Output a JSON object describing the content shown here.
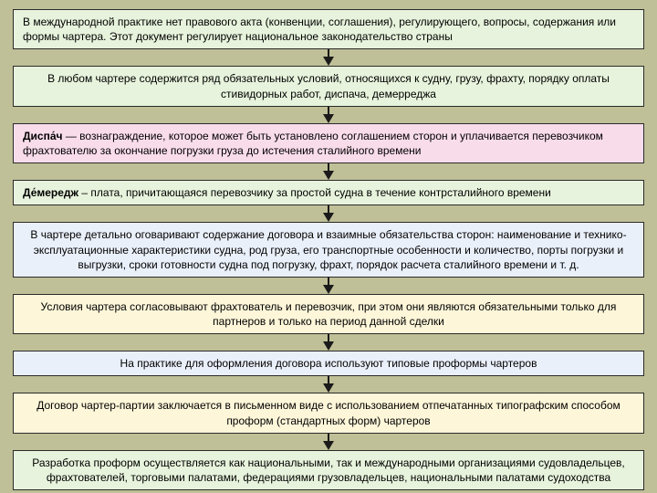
{
  "type": "flowchart",
  "background_color": "#c0c098",
  "arrow_color": "#1a1a1a",
  "font_family": "Arial",
  "font_size": 12,
  "nodes": [
    {
      "id": "n1",
      "text": "В международной практике нет правового акта (конвенции, соглашения), регулирующего, вопросы, содержания или формы чартера. Этот документ регулирует национальное законодательство страны",
      "bg": "#e7f3dc",
      "align": "left"
    },
    {
      "id": "n2",
      "text": "В любом чартере содержится ряд обязательных условий, относящихся к судну, грузу, фрахту, порядку оплаты стивидорных работ, диспача, демерреджа",
      "bg": "#e7f3dc",
      "align": "center"
    },
    {
      "id": "n3",
      "term": "Диспа́ч",
      "text": " — вознаграждение, которое может быть установлено соглашением сторон и уплачивается перевозчиком фрахтователю за окончание погрузки груза до истечения сталийного времени",
      "bg": "#f9dcea",
      "align": "left"
    },
    {
      "id": "n4",
      "term": "Де́мередж",
      "text": " – плата, причитающаяся перевозчику за простой судна в течение контрсталийного времени",
      "bg": "#e7f3dc",
      "align": "left"
    },
    {
      "id": "n5",
      "text": "В чартере детально оговаривают содержание договора и взаимные обязательства сторон: наименование и технико-эксплуатационные характеристики судна, род груза, его транспортные особенности и количество, порты погрузки и выгрузки, сроки готовности судна под погрузку, фрахт, порядок расчета сталийного времени и т. д.",
      "bg": "#eaf0fa",
      "align": "center"
    },
    {
      "id": "n6",
      "text": "Условия чартера согласовывают фрахтователь и перевозчик, при этом они являются обязательными только для партнеров и только на период данной сделки",
      "bg": "#fdf6d9",
      "align": "center"
    },
    {
      "id": "n7",
      "text": "На практике для оформления договора используют типовые проформы чартеров",
      "bg": "#eaf0fa",
      "align": "center"
    },
    {
      "id": "n8",
      "text": "Договор чартер-партии заключается в письменном виде с использованием отпечатанных типографским способом проформ (стандартных форм) чартеров",
      "bg": "#fdf6d9",
      "align": "center"
    },
    {
      "id": "n9",
      "text": "Разработка проформ осуществляется как национальными, так и международными организациями судовладельцев, фрахтователей, торговыми палатами, федерациями грузовладельцев, национальными палатами судоходства",
      "bg": "#e7f3dc",
      "align": "center"
    }
  ]
}
